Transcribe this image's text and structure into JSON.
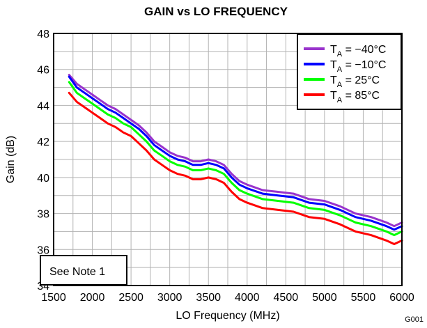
{
  "chart_data": {
    "type": "line",
    "title": "GAIN vs LO FREQUENCY",
    "xlabel": "LO Frequency (MHz)",
    "ylabel": "Gain (dB)",
    "xlim": [
      1500,
      6000
    ],
    "ylim": [
      34,
      48
    ],
    "xticks": [
      1500,
      2000,
      2500,
      3000,
      3500,
      4000,
      4500,
      5000,
      5500,
      6000
    ],
    "yticks": [
      34,
      36,
      38,
      40,
      42,
      44,
      46,
      48
    ],
    "grid": true,
    "legend_position": "top-right",
    "note": "See Note 1",
    "figure_id": "G001",
    "series": [
      {
        "name": "T_A = −40°C",
        "label_main": "T",
        "label_sub": "A",
        "label_rest": " = −40°C",
        "color": "#9933cc",
        "x": [
          1700,
          1800,
          1900,
          2000,
          2100,
          2200,
          2300,
          2400,
          2500,
          2600,
          2700,
          2800,
          2900,
          3000,
          3100,
          3200,
          3300,
          3400,
          3500,
          3600,
          3700,
          3800,
          3900,
          4000,
          4200,
          4400,
          4600,
          4800,
          5000,
          5200,
          5400,
          5600,
          5800,
          5900,
          6000
        ],
        "y": [
          45.7,
          45.2,
          44.9,
          44.6,
          44.3,
          44.0,
          43.8,
          43.5,
          43.2,
          42.9,
          42.5,
          42.0,
          41.7,
          41.4,
          41.2,
          41.1,
          40.9,
          40.9,
          41.0,
          40.9,
          40.7,
          40.2,
          39.8,
          39.6,
          39.3,
          39.2,
          39.1,
          38.8,
          38.7,
          38.4,
          38.0,
          37.8,
          37.5,
          37.3,
          37.5
        ]
      },
      {
        "name": "T_A = −10°C",
        "label_main": "T",
        "label_sub": "A",
        "label_rest": " = −10°C",
        "color": "#0000ff",
        "x": [
          1700,
          1800,
          1900,
          2000,
          2100,
          2200,
          2300,
          2400,
          2500,
          2600,
          2700,
          2800,
          2900,
          3000,
          3100,
          3200,
          3300,
          3400,
          3500,
          3600,
          3700,
          3800,
          3900,
          4000,
          4200,
          4400,
          4600,
          4800,
          5000,
          5200,
          5400,
          5600,
          5800,
          5900,
          6000
        ],
        "y": [
          45.6,
          45.0,
          44.7,
          44.4,
          44.1,
          43.8,
          43.6,
          43.3,
          43.0,
          42.7,
          42.3,
          41.8,
          41.5,
          41.2,
          41.0,
          40.9,
          40.7,
          40.7,
          40.8,
          40.7,
          40.5,
          40.0,
          39.6,
          39.4,
          39.1,
          39.0,
          38.9,
          38.6,
          38.5,
          38.2,
          37.8,
          37.6,
          37.3,
          37.1,
          37.3
        ]
      },
      {
        "name": "T_A = 25°C",
        "label_main": "T",
        "label_sub": "A",
        "label_rest": " = 25°C",
        "color": "#00ff00",
        "x": [
          1700,
          1800,
          1900,
          2000,
          2100,
          2200,
          2300,
          2400,
          2500,
          2600,
          2700,
          2800,
          2900,
          3000,
          3100,
          3200,
          3300,
          3400,
          3500,
          3600,
          3700,
          3800,
          3900,
          4000,
          4200,
          4400,
          4600,
          4800,
          5000,
          5200,
          5400,
          5600,
          5800,
          5900,
          6000
        ],
        "y": [
          45.3,
          44.7,
          44.4,
          44.1,
          43.8,
          43.5,
          43.3,
          43.0,
          42.8,
          42.4,
          42.0,
          41.5,
          41.2,
          40.9,
          40.7,
          40.6,
          40.4,
          40.4,
          40.5,
          40.4,
          40.2,
          39.7,
          39.3,
          39.1,
          38.8,
          38.7,
          38.6,
          38.3,
          38.2,
          37.9,
          37.5,
          37.3,
          37.0,
          36.8,
          37.0
        ]
      },
      {
        "name": "T_A = 85°C",
        "label_main": "T",
        "label_sub": "A",
        "label_rest": " = 85°C",
        "color": "#ff0000",
        "x": [
          1700,
          1800,
          1900,
          2000,
          2100,
          2200,
          2300,
          2400,
          2500,
          2600,
          2700,
          2800,
          2900,
          3000,
          3100,
          3200,
          3300,
          3400,
          3500,
          3600,
          3700,
          3800,
          3900,
          4000,
          4200,
          4400,
          4600,
          4800,
          5000,
          5200,
          5400,
          5600,
          5800,
          5900,
          6000
        ],
        "y": [
          44.7,
          44.2,
          43.9,
          43.6,
          43.3,
          43.0,
          42.8,
          42.5,
          42.3,
          41.9,
          41.5,
          41.0,
          40.7,
          40.4,
          40.2,
          40.1,
          39.9,
          39.9,
          40.0,
          39.9,
          39.7,
          39.2,
          38.8,
          38.6,
          38.3,
          38.2,
          38.1,
          37.8,
          37.7,
          37.4,
          37.0,
          36.8,
          36.5,
          36.3,
          36.5
        ]
      }
    ]
  }
}
